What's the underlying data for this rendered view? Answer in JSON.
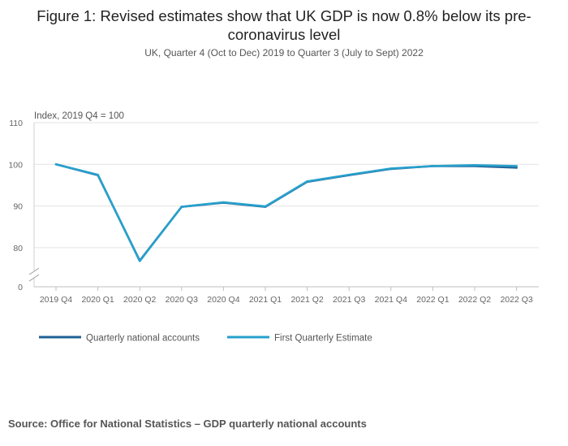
{
  "title": "Figure 1: Revised estimates show that UK GDP is now 0.8% below its pre-coronavirus level",
  "subtitle": "UK, Quarter 4 (Oct to Dec) 2019 to Quarter 3 (July to Sept) 2022",
  "source": "Source: Office for National Statistics – GDP quarterly national accounts",
  "chart_data": {
    "type": "line",
    "ylabel": "Index, 2019 Q4 = 100",
    "xlabel": "",
    "y_ticks": [
      0,
      80,
      90,
      100,
      110
    ],
    "ylim": [
      76,
      110
    ],
    "y_axis_break": true,
    "grid": true,
    "legend_position": "bottom-left",
    "categories": [
      "2019 Q4",
      "2020 Q1",
      "2020 Q2",
      "2020 Q3",
      "2020 Q4",
      "2021 Q1",
      "2021 Q2",
      "2021 Q3",
      "2021 Q4",
      "2022 Q1",
      "2022 Q2",
      "2022 Q3"
    ],
    "series": [
      {
        "name": "Quarterly national accounts",
        "color": "#206095",
        "values": [
          100,
          97.4,
          76.9,
          89.8,
          90.8,
          89.8,
          95.8,
          97.4,
          98.9,
          99.6,
          99.6,
          99.2
        ]
      },
      {
        "name": "First Quarterly Estimate",
        "color": "#27a0cc",
        "values": [
          100,
          97.5,
          76.8,
          89.8,
          90.9,
          89.9,
          95.9,
          97.5,
          99.0,
          99.6,
          99.8,
          99.6
        ]
      }
    ]
  }
}
